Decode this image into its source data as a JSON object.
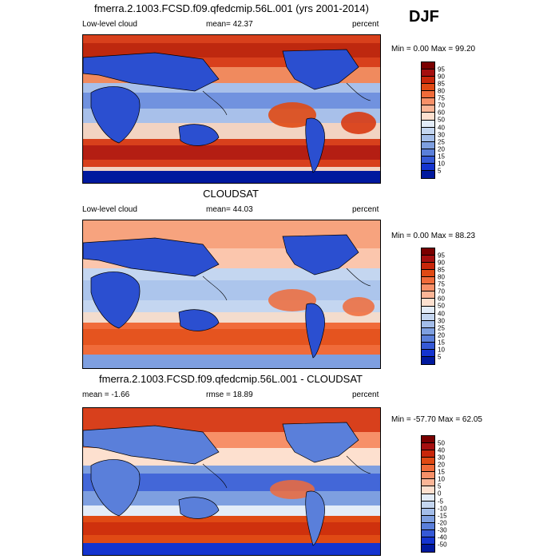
{
  "season": "DJF",
  "panels": [
    {
      "id": "model",
      "title": "fmerra.2.1003.FCSD.f09.qfedcmip.56L.001 (yrs 2001-2014)",
      "left_label": "Low-level cloud",
      "center_label": "mean=  42.37",
      "right_label": "percent",
      "range_label": "Min =   0.00 Max =  99.20",
      "colorbar": {
        "labels": [
          "95",
          "90",
          "85",
          "80",
          "75",
          "70",
          "60",
          "50",
          "40",
          "30",
          "25",
          "20",
          "15",
          "10",
          "5"
        ],
        "colors": [
          "#7a0000",
          "#a50f0f",
          "#c8260a",
          "#e04a14",
          "#f06b3a",
          "#f79068",
          "#fbb596",
          "#fde0cf",
          "#e3ecf8",
          "#c4d6f0",
          "#a3bde9",
          "#7e9fe0",
          "#5a7fda",
          "#3559d6",
          "#1434cf",
          "#00199e"
        ]
      }
    },
    {
      "id": "obs",
      "title": "CLOUDSAT",
      "left_label": "Low-level cloud",
      "center_label": "mean=  44.03",
      "right_label": "percent",
      "range_label": "Min =   0.00 Max =  88.23",
      "colorbar": {
        "labels": [
          "95",
          "90",
          "85",
          "80",
          "75",
          "70",
          "60",
          "50",
          "40",
          "30",
          "25",
          "20",
          "15",
          "10",
          "5"
        ],
        "colors": [
          "#7a0000",
          "#a50f0f",
          "#c8260a",
          "#e04a14",
          "#f06b3a",
          "#f79068",
          "#fbb596",
          "#fde0cf",
          "#e3ecf8",
          "#c4d6f0",
          "#a3bde9",
          "#7e9fe0",
          "#5a7fda",
          "#3559d6",
          "#1434cf",
          "#00199e"
        ]
      }
    },
    {
      "id": "diff",
      "title": "fmerra.2.1003.FCSD.f09.qfedcmip.56L.001 - CLOUDSAT",
      "left_label": "mean =  -1.66",
      "center_label": "rmse =  18.89",
      "right_label": "percent",
      "range_label": "Min = -57.70 Max =  62.05",
      "colorbar": {
        "labels": [
          "50",
          "40",
          "30",
          "20",
          "15",
          "10",
          "5",
          "0",
          "-5",
          "-10",
          "-15",
          "-20",
          "-30",
          "-40",
          "-50"
        ],
        "colors": [
          "#7a0000",
          "#a50f0f",
          "#c8260a",
          "#e04a14",
          "#f06b3a",
          "#f79068",
          "#fbb596",
          "#fde0cf",
          "#e3ecf8",
          "#c4d6f0",
          "#a3bde9",
          "#7e9fe0",
          "#5a7fda",
          "#3559d6",
          "#1434cf",
          "#00199e"
        ]
      }
    }
  ]
}
